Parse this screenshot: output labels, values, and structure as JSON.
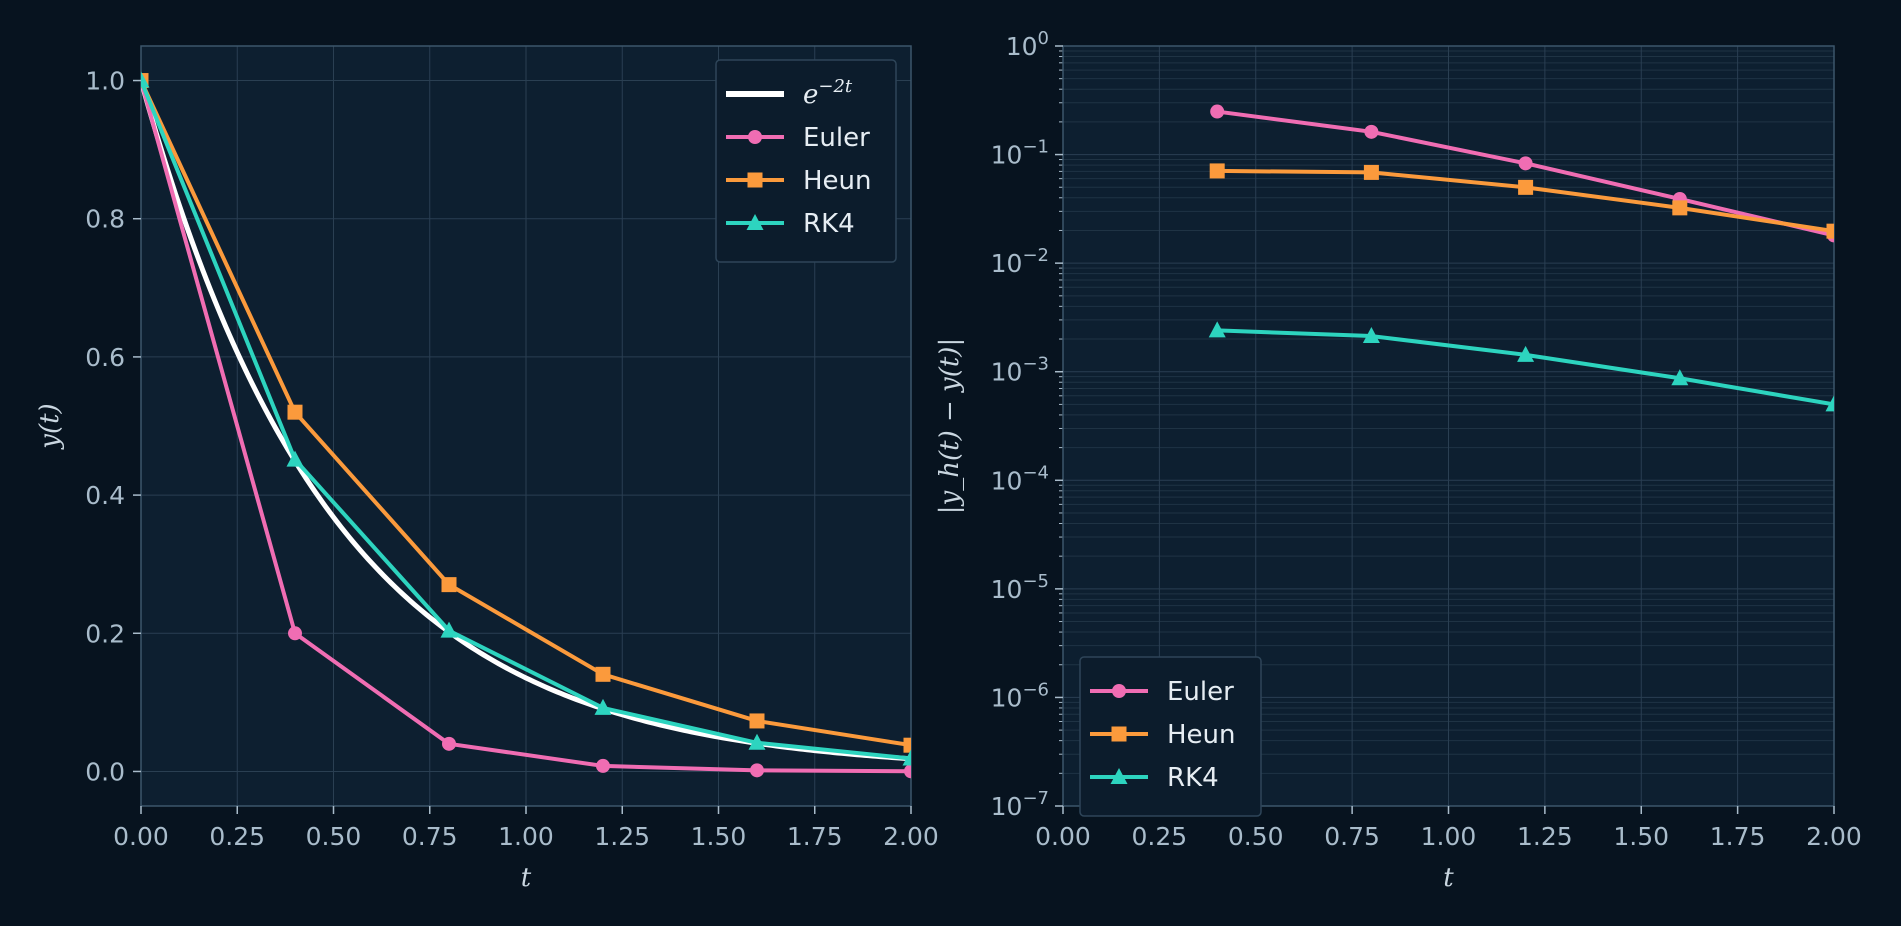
{
  "chart_data": [
    {
      "type": "line",
      "xlabel": "t",
      "ylabel": "y(t)",
      "xlim": [
        0,
        2
      ],
      "ylim": [
        -0.05,
        1.05
      ],
      "xticks": [
        "0.00",
        "0.25",
        "0.50",
        "0.75",
        "1.00",
        "1.25",
        "1.50",
        "1.75",
        "2.00"
      ],
      "yticks": [
        "0.0",
        "0.2",
        "0.4",
        "0.6",
        "0.8",
        "1.0"
      ],
      "grid": true,
      "legend_position": "top-right",
      "exact": {
        "name": "e",
        "sup": "−2t",
        "color": "#ffffff",
        "function": "exp(-2t)"
      },
      "series": [
        {
          "name": "Euler",
          "color": "#f06db3",
          "marker": "circle",
          "x": [
            0,
            0.4,
            0.8,
            1.2,
            1.6,
            2.0
          ],
          "y": [
            1.0,
            0.2,
            0.04,
            0.008,
            0.0016,
            0.0003
          ]
        },
        {
          "name": "Heun",
          "color": "#fb9a3c",
          "marker": "square",
          "x": [
            0,
            0.4,
            0.8,
            1.2,
            1.6,
            2.0
          ],
          "y": [
            1.0,
            0.52,
            0.2704,
            0.1406,
            0.0731,
            0.038
          ]
        },
        {
          "name": "RK4",
          "color": "#2dd4bf",
          "marker": "triangle",
          "x": [
            0,
            0.4,
            0.8,
            1.2,
            1.6,
            2.0
          ],
          "y": [
            1.0,
            0.4514,
            0.2038,
            0.092,
            0.0415,
            0.0187
          ]
        }
      ]
    },
    {
      "type": "line",
      "xlabel": "t",
      "ylabel": "|y_h(t) − y(t)|",
      "yscale": "log",
      "xlim": [
        0,
        2
      ],
      "ylim": [
        1e-07,
        1
      ],
      "xticks": [
        "0.00",
        "0.25",
        "0.50",
        "0.75",
        "1.00",
        "1.25",
        "1.50",
        "1.75",
        "2.00"
      ],
      "yticks_exponents": [
        "−7",
        "−6",
        "−5",
        "−4",
        "−3",
        "−2",
        "−1",
        "0"
      ],
      "grid": true,
      "legend_position": "bottom-left",
      "series": [
        {
          "name": "Euler",
          "color": "#f06db3",
          "marker": "circle",
          "x": [
            0.4,
            0.8,
            1.2,
            1.6,
            2.0
          ],
          "y": [
            0.249,
            0.162,
            0.083,
            0.039,
            0.018
          ]
        },
        {
          "name": "Heun",
          "color": "#fb9a3c",
          "marker": "square",
          "x": [
            0.4,
            0.8,
            1.2,
            1.6,
            2.0
          ],
          "y": [
            0.0707,
            0.0685,
            0.0499,
            0.0323,
            0.0197
          ]
        },
        {
          "name": "RK4",
          "color": "#2dd4bf",
          "marker": "triangle",
          "x": [
            0.4,
            0.8,
            1.2,
            1.6,
            2.0
          ],
          "y": [
            0.0024,
            0.00213,
            0.00143,
            0.00087,
            0.0005
          ]
        }
      ]
    }
  ]
}
